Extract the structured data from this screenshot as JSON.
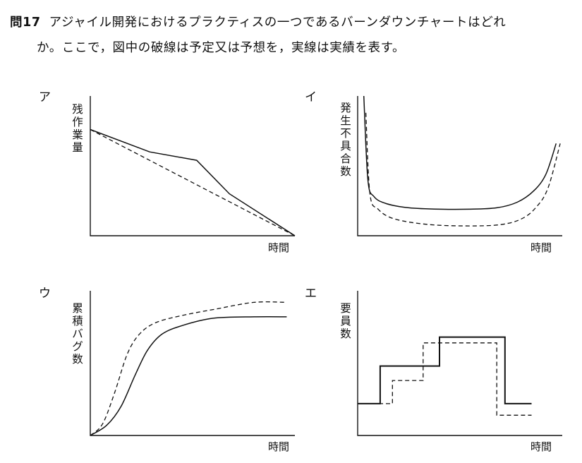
{
  "question": {
    "number": "問17",
    "line1": "アジャイル開発におけるプラクティスの一つであるバーンダウンチャートはどれ",
    "line2": "か。ここで，図中の破線は予定又は予想を，実線は実績を表す。"
  },
  "options": [
    {
      "letter": "ア",
      "ylabel": "残作業量",
      "xlabel": "時間"
    },
    {
      "letter": "イ",
      "ylabel": "発生不具合数",
      "xlabel": "時間"
    },
    {
      "letter": "ウ",
      "ylabel": "累積バグ数",
      "xlabel": "時間"
    },
    {
      "letter": "エ",
      "ylabel": "要員数",
      "xlabel": "時間"
    }
  ],
  "chart_data": [
    {
      "type": "line",
      "xlim": [
        0,
        100
      ],
      "ylim": [
        0,
        100
      ],
      "series": [
        {
          "style": "solid",
          "points": [
            [
              0,
              76
            ],
            [
              29,
              60
            ],
            [
              52,
              54
            ],
            [
              68,
              30
            ],
            [
              100,
              0
            ]
          ]
        },
        {
          "style": "dashed",
          "points": [
            [
              0,
              76
            ],
            [
              100,
              0
            ]
          ]
        }
      ]
    },
    {
      "type": "line",
      "xlim": [
        0,
        100
      ],
      "ylim": [
        0,
        100
      ],
      "series": [
        {
          "style": "solid",
          "points": [
            [
              3,
              100
            ],
            [
              5,
              40
            ],
            [
              8,
              28
            ],
            [
              14,
              23
            ],
            [
              25,
              20
            ],
            [
              40,
              19
            ],
            [
              55,
              19
            ],
            [
              68,
              20
            ],
            [
              78,
              24
            ],
            [
              86,
              32
            ],
            [
              92,
              44
            ],
            [
              97,
              66
            ]
          ]
        },
        {
          "style": "dashed",
          "points": [
            [
              4,
              88
            ],
            [
              6,
              30
            ],
            [
              10,
              19
            ],
            [
              18,
              12
            ],
            [
              35,
              8
            ],
            [
              55,
              7
            ],
            [
              70,
              8
            ],
            [
              80,
              12
            ],
            [
              87,
              20
            ],
            [
              93,
              34
            ],
            [
              99,
              66
            ]
          ]
        }
      ]
    },
    {
      "type": "line",
      "xlim": [
        0,
        100
      ],
      "ylim": [
        0,
        100
      ],
      "series": [
        {
          "style": "solid",
          "points": [
            [
              0,
              0
            ],
            [
              8,
              7
            ],
            [
              15,
              20
            ],
            [
              22,
              42
            ],
            [
              28,
              59
            ],
            [
              35,
              70
            ],
            [
              45,
              76
            ],
            [
              60,
              81
            ],
            [
              80,
              82
            ],
            [
              96,
              82
            ]
          ]
        },
        {
          "style": "dashed",
          "points": [
            [
              0,
              0
            ],
            [
              6,
              8
            ],
            [
              12,
              30
            ],
            [
              18,
              56
            ],
            [
              24,
              70
            ],
            [
              32,
              78
            ],
            [
              45,
              83
            ],
            [
              60,
              87
            ],
            [
              80,
              92
            ],
            [
              96,
              92
            ]
          ]
        }
      ]
    },
    {
      "type": "line",
      "xlim": [
        0,
        100
      ],
      "ylim": [
        0,
        100
      ],
      "series": [
        {
          "style": "solid",
          "points": [
            [
              0,
              22
            ],
            [
              11,
              22
            ],
            [
              11,
              48
            ],
            [
              40,
              48
            ],
            [
              40,
              68
            ],
            [
              72,
              68
            ],
            [
              72,
              22
            ],
            [
              85,
              22
            ]
          ]
        },
        {
          "style": "dashed",
          "points": [
            [
              0,
              22
            ],
            [
              17,
              22
            ],
            [
              17,
              38
            ],
            [
              32,
              38
            ],
            [
              32,
              64
            ],
            [
              68,
              64
            ],
            [
              68,
              14
            ],
            [
              85,
              14
            ]
          ]
        }
      ]
    }
  ]
}
